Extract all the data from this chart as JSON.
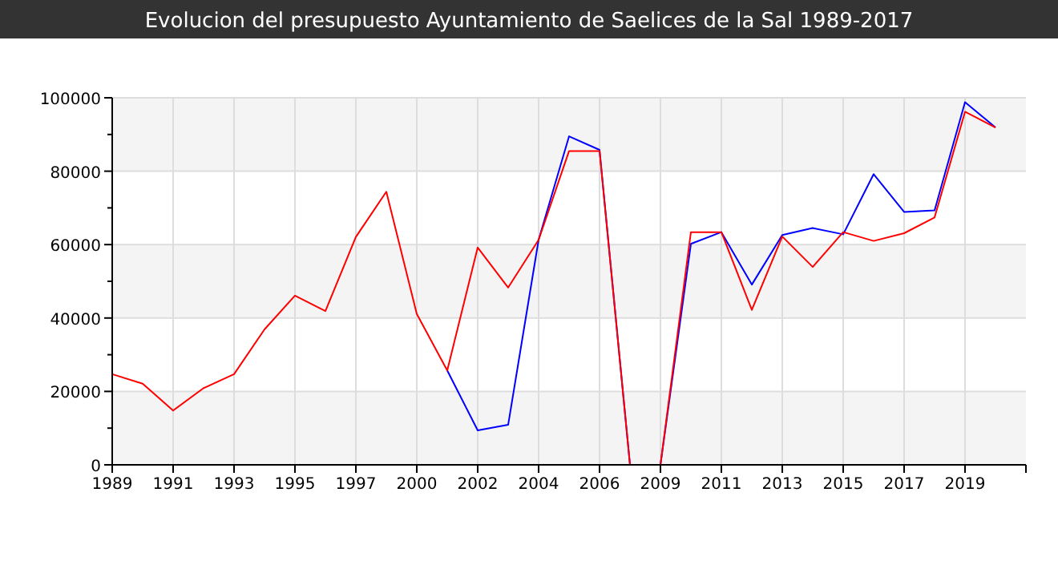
{
  "chart_data": {
    "type": "line",
    "title": "Evolucion del presupuesto Ayuntamiento de Saelices de la Sal 1989-2017",
    "categories": [
      "1989",
      null,
      "1991",
      null,
      "1993",
      null,
      "1995",
      null,
      "1997",
      null,
      "2000",
      null,
      "2002",
      null,
      "2004",
      null,
      "2006",
      null,
      "2009",
      null,
      "2011",
      null,
      "2013",
      null,
      "2015",
      null,
      "2017",
      null,
      "2019",
      null
    ],
    "series": [
      {
        "color": "#0000ff",
        "values": [
          null,
          null,
          null,
          null,
          null,
          null,
          null,
          null,
          null,
          null,
          null,
          25700,
          9400,
          10900,
          61300,
          89500,
          85800,
          0,
          0,
          60200,
          63400,
          49100,
          62600,
          64500,
          62800,
          79200,
          68900,
          69300,
          98800,
          91900
        ]
      },
      {
        "color": "#ff0000",
        "values": [
          24700,
          22100,
          14800,
          20900,
          24700,
          36900,
          46100,
          41900,
          62100,
          74400,
          41100,
          25700,
          59200,
          48300,
          61300,
          85500,
          85500,
          0,
          0,
          63400,
          63400,
          42200,
          62200,
          53900,
          63400,
          61000,
          63100,
          67400,
          96200,
          91900
        ]
      }
    ],
    "ylim": [
      0,
      100000
    ],
    "yticks": [
      0,
      {
        "value": 10000,
        "label": null
      },
      20000,
      {
        "value": 30000,
        "label": null
      },
      40000,
      {
        "value": 50000,
        "label": null
      },
      60000,
      {
        "value": 70000,
        "label": null
      },
      80000,
      {
        "value": 90000,
        "label": null
      },
      100000
    ],
    "grid": true,
    "marker": "none",
    "line_style": "solid"
  }
}
